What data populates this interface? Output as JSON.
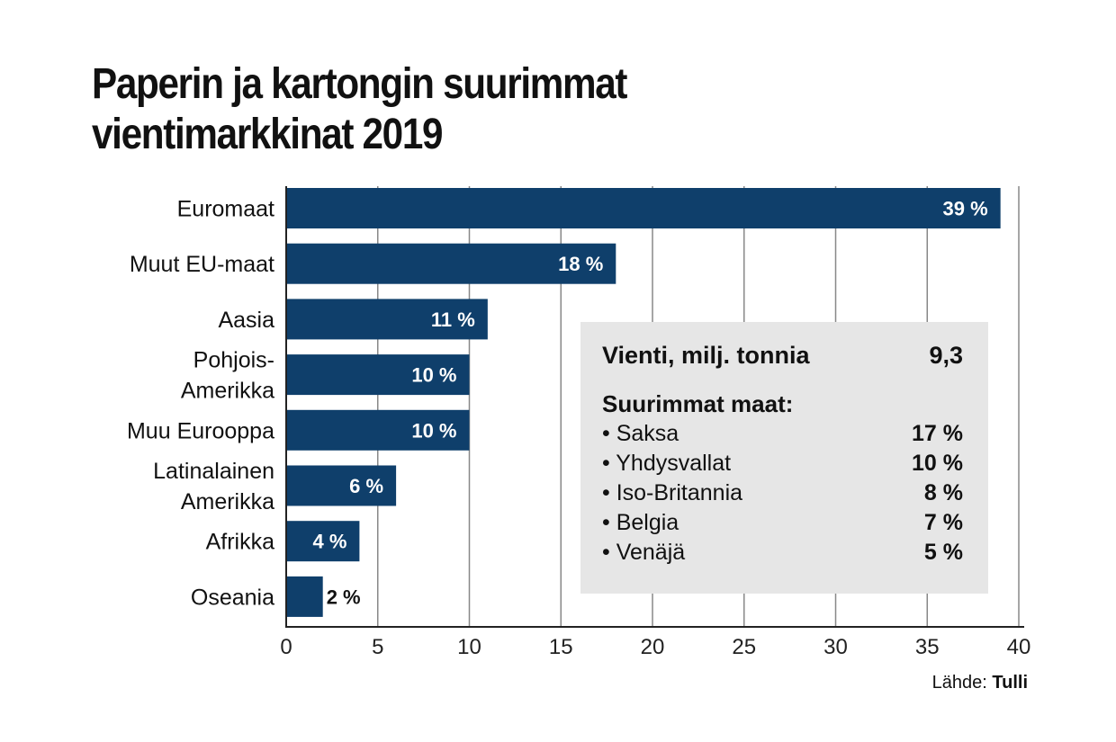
{
  "chart_data": {
    "type": "bar",
    "orientation": "horizontal",
    "title": "Paperin ja kartongin suurimmat vientimarkkinat 2019",
    "title_lines": [
      "Paperin ja kartongin suurimmat",
      "vientimarkkinat 2019"
    ],
    "categories": [
      [
        "Euromaat"
      ],
      [
        "Muut EU-maat"
      ],
      [
        "Aasia"
      ],
      [
        "Pohjois-",
        "Amerikka"
      ],
      [
        "Muu Eurooppa"
      ],
      [
        "Latinalainen",
        "Amerikka"
      ],
      [
        "Afrikka"
      ],
      [
        "Oseania"
      ]
    ],
    "values": [
      39,
      18,
      11,
      10,
      10,
      6,
      4,
      2
    ],
    "value_labels": [
      "39 %",
      "18 %",
      "11 %",
      "10 %",
      "10 %",
      "6 %",
      "4 %",
      "2 %"
    ],
    "xlim": [
      0,
      40
    ],
    "xticks": [
      "0",
      "5",
      "10",
      "15",
      "20",
      "25",
      "30",
      "35",
      "40"
    ],
    "grid": true,
    "bar_color": "#0f3f6b",
    "xlabel": "",
    "ylabel": ""
  },
  "infobox": {
    "export_label": "Vienti, milj. tonnia",
    "export_value": "9,3",
    "countries_heading": "Suurimmat maat:",
    "countries": [
      {
        "name": "• Saksa",
        "value": "17 %"
      },
      {
        "name": "• Yhdysvallat",
        "value": "10 %"
      },
      {
        "name": "• Iso-Britannia",
        "value": "8 %"
      },
      {
        "name": "• Belgia",
        "value": "7 %"
      },
      {
        "name": "• Venäjä",
        "value": "5 %"
      }
    ]
  },
  "source": {
    "label": "Lähde:",
    "name": "Tulli"
  }
}
